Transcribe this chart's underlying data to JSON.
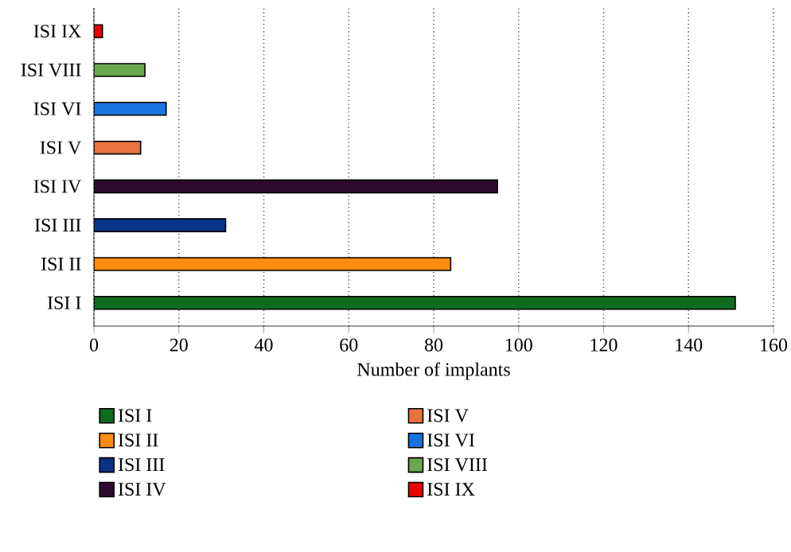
{
  "chart_data": {
    "type": "bar",
    "orientation": "horizontal",
    "categories": [
      "ISI IX",
      "ISI VIII",
      "ISI VI",
      "ISI V",
      "ISI IV",
      "ISI III",
      "ISI II",
      "ISI I"
    ],
    "series": [
      {
        "name": "ISI I",
        "color": "#0f6b1f",
        "values": [
          null,
          null,
          null,
          null,
          null,
          null,
          null,
          151
        ]
      },
      {
        "name": "ISI II",
        "color": "#ff8c10",
        "values": [
          null,
          null,
          null,
          null,
          null,
          null,
          84,
          null
        ]
      },
      {
        "name": "ISI III",
        "color": "#0a3387",
        "values": [
          null,
          null,
          null,
          null,
          null,
          31,
          null,
          null
        ]
      },
      {
        "name": "ISI IV",
        "color": "#2e0a2e",
        "values": [
          null,
          null,
          null,
          null,
          95,
          null,
          null,
          null
        ]
      },
      {
        "name": "ISI V",
        "color": "#e8733e",
        "values": [
          null,
          null,
          null,
          11,
          null,
          null,
          null,
          null
        ]
      },
      {
        "name": "ISI VI",
        "color": "#1a73e0",
        "values": [
          null,
          null,
          17,
          null,
          null,
          null,
          null,
          null
        ]
      },
      {
        "name": "ISI VIII",
        "color": "#6aa84f",
        "values": [
          null,
          12,
          null,
          null,
          null,
          null,
          null,
          null
        ]
      },
      {
        "name": "ISI IX",
        "color": "#ee0000",
        "values": [
          2,
          null,
          null,
          null,
          null,
          null,
          null,
          null
        ]
      }
    ],
    "xlabel": "Number of implants",
    "xlim": [
      0,
      160
    ],
    "xticks": [
      0,
      20,
      40,
      60,
      80,
      100,
      120,
      140,
      160
    ],
    "grid": "x",
    "legend": "bottom"
  }
}
